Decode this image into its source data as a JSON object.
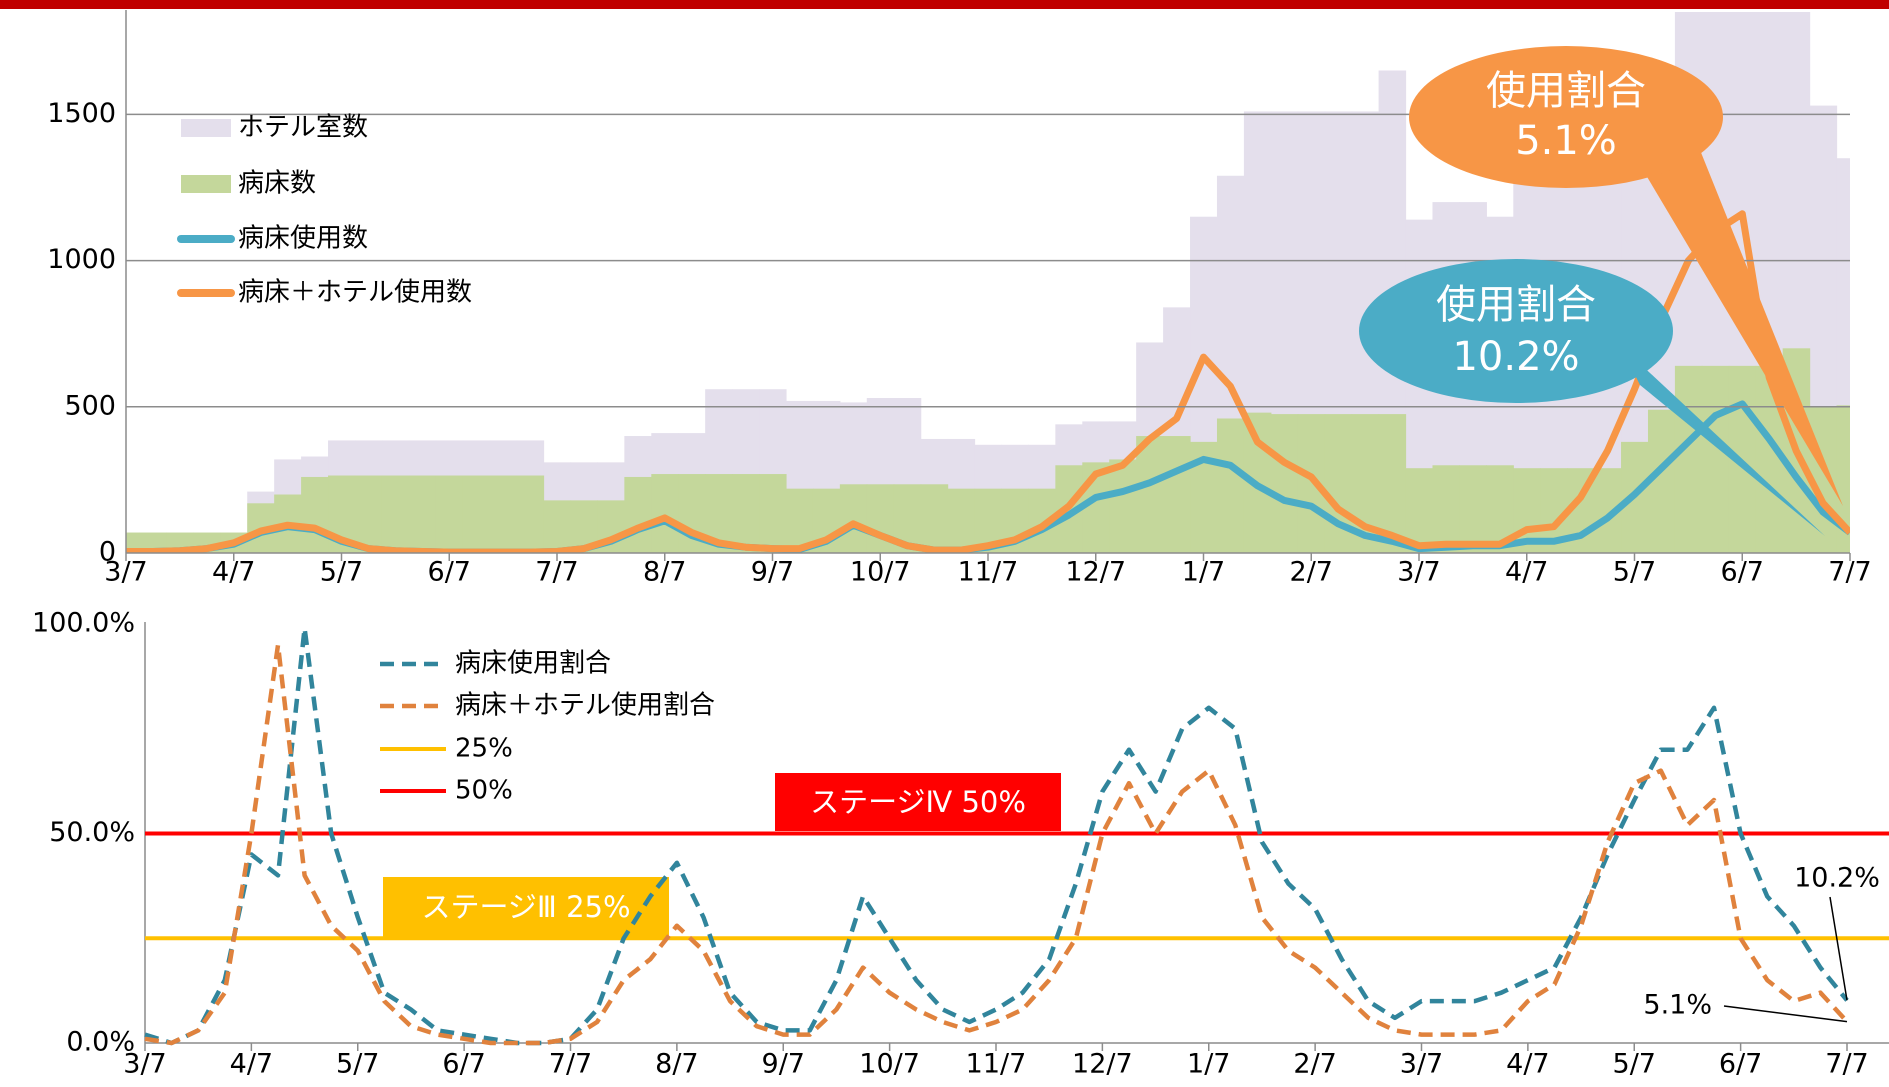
{
  "chart_data": [
    {
      "type": "combo",
      "categories": [
        "3/7",
        null,
        null,
        null,
        "4/7",
        null,
        null,
        null,
        "5/7",
        null,
        null,
        null,
        "6/7",
        null,
        null,
        null,
        "7/7",
        null,
        null,
        null,
        "8/7",
        null,
        null,
        null,
        "9/7",
        null,
        null,
        null,
        "10/7",
        null,
        null,
        null,
        "11/7",
        null,
        null,
        null,
        "12/7",
        null,
        null,
        null,
        "1/7",
        null,
        null,
        null,
        "2/7",
        null,
        null,
        null,
        "3/7",
        null,
        null,
        null,
        "4/7",
        null,
        null,
        null,
        "5/7",
        null,
        null,
        null,
        "6/7",
        null,
        null,
        null,
        "7/7"
      ],
      "ylim": [
        0,
        1850
      ],
      "yticks": [
        0,
        500,
        1000,
        1500
      ],
      "grid": true,
      "series": [
        {
          "name": "ホテル室数",
          "kind": "step-area",
          "color": "#e4dfec",
          "values": [
            0,
            0,
            0,
            0,
            0,
            210,
            320,
            330,
            385,
            385,
            385,
            385,
            385,
            385,
            385,
            385,
            310,
            310,
            310,
            400,
            410,
            410,
            560,
            560,
            560,
            520,
            520,
            515,
            530,
            530,
            390,
            390,
            370,
            370,
            370,
            440,
            450,
            450,
            720,
            840,
            1150,
            1290,
            1510,
            1510,
            1510,
            1510,
            1510,
            1650,
            1140,
            1200,
            1200,
            1150,
            1300,
            1300,
            1290,
            1290,
            1420,
            1420,
            1900,
            1900,
            1900,
            1900,
            1900,
            1530,
            1350
          ]
        },
        {
          "name": "病床数",
          "kind": "step-area",
          "color": "#c4d79b",
          "values": [
            70,
            70,
            70,
            70,
            70,
            170,
            200,
            260,
            265,
            265,
            265,
            265,
            265,
            265,
            265,
            265,
            180,
            180,
            180,
            260,
            270,
            270,
            270,
            270,
            270,
            220,
            220,
            235,
            235,
            235,
            235,
            220,
            220,
            220,
            220,
            300,
            310,
            320,
            400,
            400,
            380,
            460,
            480,
            475,
            475,
            475,
            475,
            475,
            290,
            300,
            300,
            300,
            290,
            290,
            290,
            290,
            380,
            490,
            640,
            640,
            640,
            640,
            700,
            500,
            505
          ]
        },
        {
          "name": "病床使用数",
          "kind": "line",
          "color": "#4bacc6",
          "values": [
            5,
            5,
            8,
            15,
            30,
            70,
            90,
            80,
            40,
            15,
            8,
            5,
            3,
            3,
            3,
            3,
            5,
            15,
            40,
            80,
            110,
            60,
            30,
            20,
            15,
            12,
            40,
            95,
            60,
            25,
            10,
            10,
            20,
            40,
            80,
            130,
            190,
            210,
            240,
            280,
            320,
            300,
            230,
            180,
            160,
            100,
            60,
            40,
            15,
            20,
            25,
            25,
            40,
            40,
            60,
            120,
            200,
            290,
            380,
            470,
            510,
            390,
            260,
            140,
            70
          ]
        },
        {
          "name": "病床＋ホテル使用数",
          "kind": "line",
          "color": "#f79646",
          "values": [
            5,
            5,
            8,
            15,
            35,
            75,
            95,
            85,
            45,
            15,
            8,
            5,
            3,
            3,
            3,
            3,
            5,
            15,
            45,
            85,
            120,
            70,
            35,
            20,
            15,
            15,
            45,
            100,
            60,
            25,
            10,
            10,
            25,
            45,
            90,
            160,
            270,
            300,
            390,
            460,
            670,
            570,
            380,
            310,
            260,
            150,
            90,
            60,
            25,
            30,
            30,
            30,
            80,
            90,
            190,
            350,
            560,
            800,
            1000,
            1100,
            1160,
            600,
            350,
            170,
            70
          ]
        }
      ],
      "callouts": [
        {
          "title": "使用割合",
          "label": "5.1%",
          "color": "#f79646"
        },
        {
          "title": "使用割合",
          "label": "10.2%",
          "color": "#4bacc6"
        }
      ]
    },
    {
      "type": "line",
      "categories": [
        "3/7",
        null,
        null,
        null,
        "4/7",
        null,
        null,
        null,
        "5/7",
        null,
        null,
        null,
        "6/7",
        null,
        null,
        null,
        "7/7",
        null,
        null,
        null,
        "8/7",
        null,
        null,
        null,
        "9/7",
        null,
        null,
        null,
        "10/7",
        null,
        null,
        null,
        "11/7",
        null,
        null,
        null,
        "12/7",
        null,
        null,
        null,
        "1/7",
        null,
        null,
        null,
        "2/7",
        null,
        null,
        null,
        "3/7",
        null,
        null,
        null,
        "4/7",
        null,
        null,
        null,
        "5/7",
        null,
        null,
        null,
        "6/7",
        null,
        null,
        null,
        "7/7"
      ],
      "ylim": [
        0,
        100
      ],
      "yticks": [
        {
          "value": 0,
          "label": "0.0%"
        },
        {
          "value": 50,
          "label": "50.0%"
        },
        {
          "value": 100,
          "label": "100.0%"
        }
      ],
      "series": [
        {
          "name": "病床使用割合",
          "color": "#31859c",
          "dashed": true,
          "end_label": "10.2%",
          "values": [
            2,
            0,
            3,
            15,
            45,
            40,
            99,
            50,
            30,
            12,
            8,
            3,
            2,
            1,
            0,
            0,
            1,
            8,
            25,
            35,
            43,
            30,
            12,
            5,
            3,
            3,
            15,
            35,
            25,
            15,
            8,
            5,
            8,
            12,
            20,
            38,
            60,
            70,
            60,
            75,
            80,
            75,
            48,
            38,
            32,
            20,
            10,
            6,
            10,
            10,
            10,
            12,
            15,
            18,
            30,
            45,
            58,
            70,
            70,
            80,
            50,
            35,
            28,
            18,
            10.2
          ]
        },
        {
          "name": "病床＋ホテル使用割合",
          "color": "#e0823d",
          "dashed": true,
          "end_label": "5.1%",
          "values": [
            1,
            0,
            3,
            12,
            50,
            95,
            40,
            28,
            22,
            10,
            4,
            2,
            1,
            0,
            0,
            0,
            1,
            5,
            15,
            20,
            28,
            22,
            10,
            4,
            2,
            2,
            8,
            18,
            12,
            8,
            5,
            3,
            5,
            8,
            15,
            25,
            50,
            62,
            50,
            60,
            65,
            52,
            30,
            22,
            18,
            12,
            6,
            3,
            2,
            2,
            2,
            3,
            10,
            14,
            28,
            48,
            62,
            65,
            52,
            58,
            25,
            15,
            10,
            12,
            5.1
          ]
        }
      ],
      "ref_lines": [
        {
          "name": "25%",
          "value": 25,
          "color": "#ffc000",
          "label": "ステージⅢ  25%"
        },
        {
          "name": "50%",
          "value": 50,
          "color": "#ff0000",
          "label": "ステージⅣ  50%"
        }
      ]
    }
  ]
}
